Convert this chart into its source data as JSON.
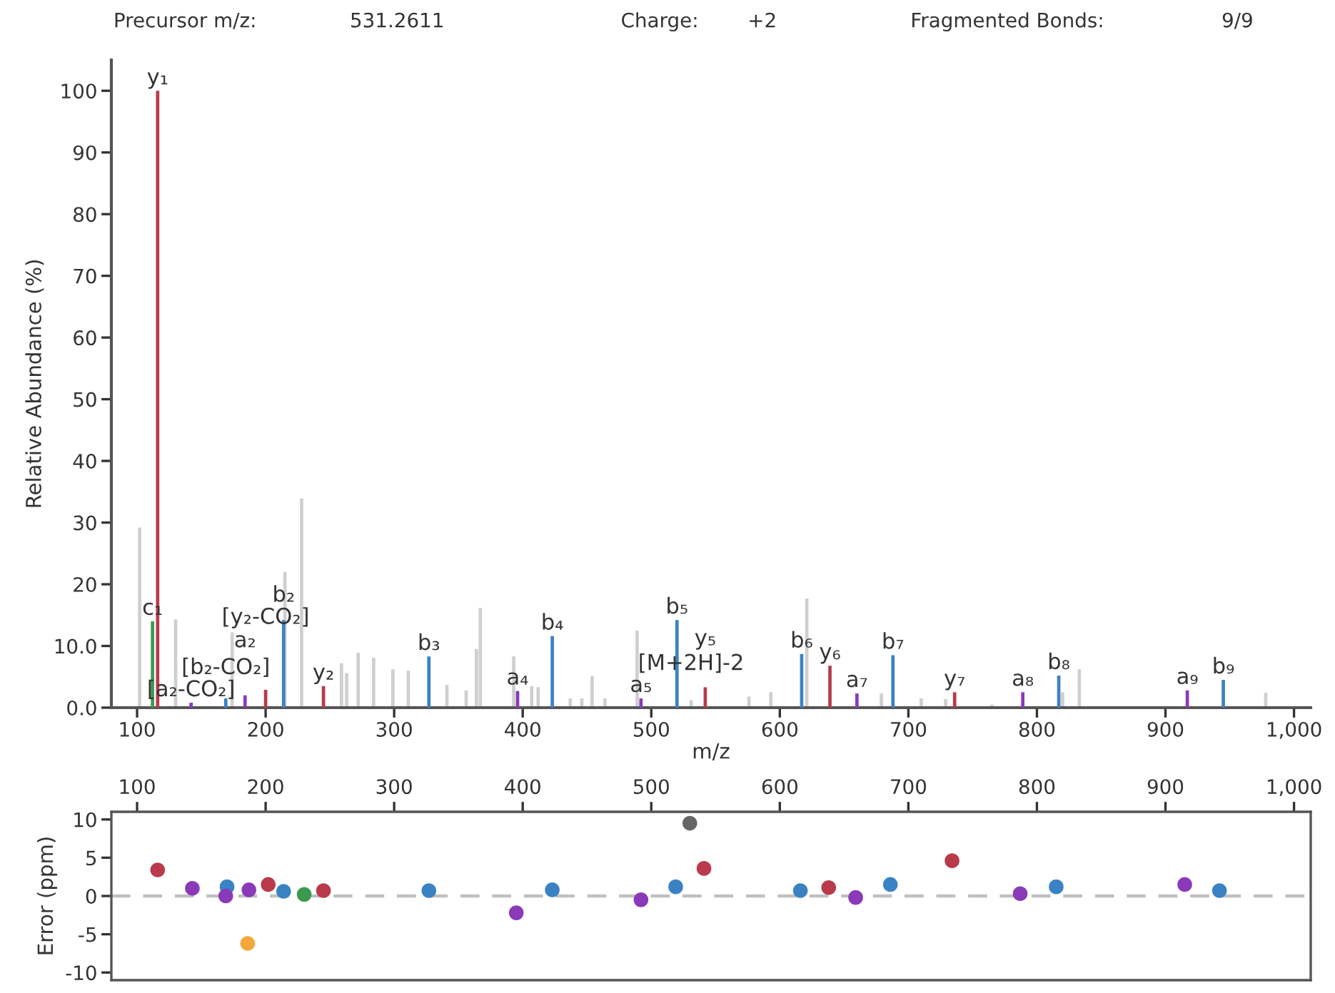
{
  "chart_data": [
    {
      "type": "bar",
      "xlabel": "m/z",
      "ylabel": "Relative Abundance (%)",
      "xlim": [
        80,
        1013
      ],
      "xticks": [
        100,
        200,
        300,
        400,
        500,
        600,
        700,
        800,
        900,
        {
          "value": 1000,
          "label": "1,000"
        }
      ],
      "ylim": [
        0,
        105
      ],
      "yticks": [
        {
          "value": 0,
          "label": "0.0"
        },
        {
          "value": 10,
          "label": "10.0"
        },
        20,
        30,
        40,
        50,
        60,
        70,
        80,
        90,
        100
      ],
      "series": [
        {
          "color": "#cfcfcf",
          "x": [
            102,
            130,
            174,
            215,
            228,
            259,
            263,
            272,
            284,
            299,
            311,
            341,
            356,
            364,
            367,
            393,
            407,
            412,
            437,
            446,
            454,
            464,
            489,
            531,
            576,
            593,
            621,
            679,
            710,
            729,
            765,
            820,
            833,
            978
          ],
          "values": [
            29.2,
            14.3,
            12.2,
            22,
            33.9,
            7.2,
            5.6,
            8.9,
            8.1,
            6.2,
            6.0,
            3.7,
            2.8,
            9.5,
            16.2,
            8.3,
            3.5,
            3.3,
            1.5,
            1.5,
            5.1,
            1.5,
            12.5,
            1.2,
            1.8,
            2.5,
            17.7,
            2.3,
            1.5,
            1.4,
            0.5,
            2.5,
            6.2,
            2.4
          ]
        },
        {
          "color": "#b83a4b",
          "x": [
            116,
            200,
            245,
            542,
            639,
            736
          ],
          "values": [
            100,
            2.9,
            3.5,
            3.3,
            6.8,
            2.5
          ]
        },
        {
          "color": "#3a82c4",
          "x": [
            169,
            214,
            327,
            423,
            520,
            617,
            688,
            817,
            945
          ],
          "values": [
            1.5,
            14.2,
            8.3,
            11.6,
            14.2,
            8.7,
            8.5,
            5.2,
            4.5
          ]
        },
        {
          "color": "#8a3ab9",
          "x": [
            142,
            184,
            396,
            492,
            660,
            789,
            917
          ],
          "values": [
            0.8,
            2.0,
            2.7,
            1.5,
            2.3,
            2.5,
            2.8
          ]
        },
        {
          "color": "#3c9a50",
          "x": [
            112
          ],
          "values": [
            14
          ]
        }
      ],
      "annotations": [
        "Precursor m/z:",
        "531.2611",
        "Charge:",
        "+2",
        "Fragmented Bonds:",
        "9/9",
        {
          "text": "y₁",
          "x": 116,
          "y": 100
        },
        {
          "text": "c₁",
          "x": 112,
          "y": 14
        },
        {
          "text": "[a₂-CO₂]",
          "x": 142,
          "y": 0.8
        },
        {
          "text": "[b₂-CO₂]",
          "x": 169,
          "y": 1.5
        },
        {
          "text": "a₂",
          "x": 184,
          "y": 2.0
        },
        {
          "text": "[y₂-CO₂]",
          "x": 200,
          "y": 2.9
        },
        {
          "text": "b₂",
          "x": 214,
          "y": 14.2
        },
        {
          "text": "y₂",
          "x": 245,
          "y": 3.5
        },
        {
          "text": "b₃",
          "x": 327,
          "y": 8.3
        },
        {
          "text": "a₄",
          "x": 396,
          "y": 2.7
        },
        {
          "text": "b₄",
          "x": 423,
          "y": 11.6
        },
        {
          "text": "a₅",
          "x": 492,
          "y": 1.5
        },
        {
          "text": "b₅",
          "x": 520,
          "y": 14.2
        },
        {
          "text": "[M+2H]-2",
          "x": 531,
          "y": 1.2
        },
        {
          "text": "y₅",
          "x": 542,
          "y": 3.3
        },
        {
          "text": "b₆",
          "x": 617,
          "y": 8.7
        },
        {
          "text": "y₆",
          "x": 639,
          "y": 6.8
        },
        {
          "text": "a₇",
          "x": 660,
          "y": 2.3
        },
        {
          "text": "b₇",
          "x": 688,
          "y": 8.5
        },
        {
          "text": "y₇",
          "x": 736,
          "y": 2.5
        },
        {
          "text": "a₈",
          "x": 789,
          "y": 2.5
        },
        {
          "text": "b₈",
          "x": 817,
          "y": 5.2
        },
        {
          "text": "a₉",
          "x": 917,
          "y": 2.8
        },
        {
          "text": "b₉",
          "x": 945,
          "y": 4.5
        }
      ]
    },
    {
      "type": "scatter",
      "ylabel": "Error (ppm)",
      "marker": "circle",
      "xlim": [
        80,
        1013
      ],
      "xticks": [
        100,
        200,
        300,
        400,
        500,
        600,
        700,
        800,
        900,
        {
          "value": 1000,
          "label": "1,000"
        }
      ],
      "ylim": [
        -11,
        11
      ],
      "yticks": [
        10,
        5,
        0,
        -5,
        -10
      ],
      "ref_lines": [
        {
          "axis": "y",
          "value": 0,
          "color": "#c0c0c0",
          "line_style": "dashed"
        }
      ],
      "series": [
        {
          "color": "#b83a4b",
          "x": [
            116,
            202,
            245,
            541,
            638,
            734
          ],
          "values": [
            3.4,
            1.5,
            0.7,
            3.6,
            1.1,
            4.6
          ]
        },
        {
          "color": "#3a82c4",
          "x": [
            170,
            214,
            327,
            423,
            519,
            616,
            686,
            815,
            942
          ],
          "values": [
            1.2,
            0.6,
            0.7,
            0.8,
            1.2,
            0.7,
            1.5,
            1.2,
            0.7
          ]
        },
        {
          "color": "#8a3ab9",
          "x": [
            143,
            169,
            187,
            395,
            492,
            659,
            787,
            915
          ],
          "values": [
            1.0,
            0,
            0.8,
            -2.2,
            -0.5,
            -0.2,
            0.3,
            1.5
          ]
        },
        {
          "color": "#3c9a50",
          "x": [
            230
          ],
          "values": [
            0.2
          ]
        },
        {
          "color": "#f5a83a",
          "x": [
            186
          ],
          "values": [
            -6.2
          ]
        },
        {
          "color": "#666666",
          "x": [
            530
          ],
          "values": [
            9.5
          ]
        }
      ]
    }
  ]
}
